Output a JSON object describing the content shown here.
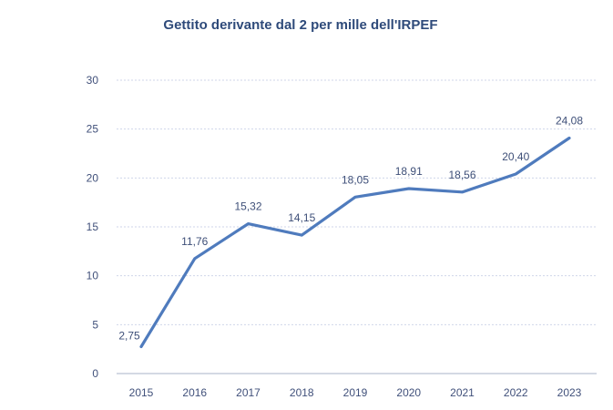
{
  "chart_data": {
    "type": "line",
    "title": "Gettito derivante dal 2 per  mille dell'IRPEF",
    "xlabel": "",
    "ylabel": "",
    "categories": [
      "2015",
      "2016",
      "2017",
      "2018",
      "2019",
      "2020",
      "2021",
      "2022",
      "2023"
    ],
    "series": [
      {
        "values": [
          2.75,
          11.76,
          15.32,
          14.15,
          18.05,
          18.91,
          18.56,
          20.4,
          24.08
        ],
        "labels": [
          "2,75",
          "11,76",
          "15,32",
          "14,15",
          "18,05",
          "18,91",
          "18,56",
          "20,40",
          "24,08"
        ],
        "color": "#4f7bbd"
      }
    ],
    "ylim": [
      0,
      30
    ],
    "yticks": [
      "0",
      "5",
      "10",
      "15",
      "20",
      "25",
      "30"
    ],
    "grid": true,
    "legend": "none"
  }
}
